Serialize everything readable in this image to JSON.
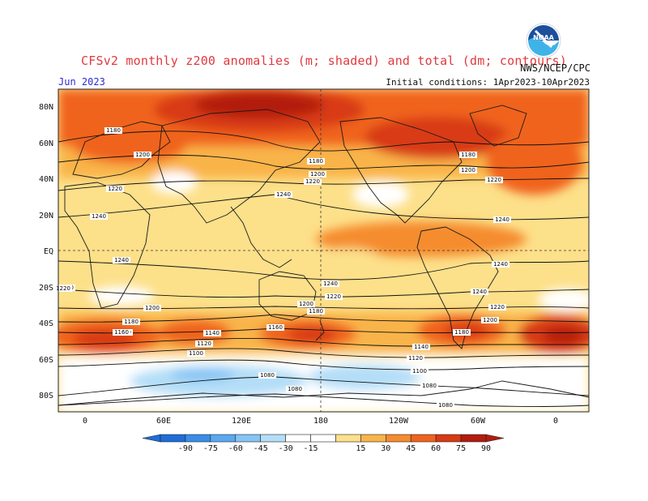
{
  "title": "CFSv2 monthly z200 anomalies (m; shaded) and total (dm; contours)",
  "agency": "NWS/NCEP/CPC",
  "month": "Jun 2023",
  "init": "Initial conditions: 1Apr2023-10Apr2023",
  "logo_text": "NOAA",
  "map": {
    "lat_labels": [
      "80N",
      "60N",
      "40N",
      "20N",
      "EQ",
      "20S",
      "40S",
      "60S",
      "80S"
    ],
    "lon_labels": [
      "0",
      "60E",
      "120E",
      "180",
      "120W",
      "60W",
      "0"
    ]
  },
  "colorbar": {
    "ticks": [
      "-90",
      "-75",
      "-60",
      "-45",
      "-30",
      "-15",
      "15",
      "30",
      "45",
      "60",
      "75",
      "90"
    ],
    "colors": [
      "#1e6ed8",
      "#3a8ee8",
      "#5aa8f0",
      "#86c4f4",
      "#b4def8",
      "#ffffff",
      "#fde08a",
      "#f9b44a",
      "#f58c2e",
      "#f0631e",
      "#d83a14",
      "#b21c0e"
    ]
  },
  "contour_labels": [
    {
      "text": "1180"
    },
    {
      "text": "1200"
    },
    {
      "text": "1220"
    },
    {
      "text": "1240"
    },
    {
      "text": "1240"
    },
    {
      "text": "1220"
    },
    {
      "text": "1200"
    },
    {
      "text": "1180"
    },
    {
      "text": "1160"
    },
    {
      "text": "1140"
    },
    {
      "text": "1120"
    },
    {
      "text": "1100"
    },
    {
      "text": "1080"
    },
    {
      "text": "1080"
    },
    {
      "text": "1180"
    },
    {
      "text": "1200"
    },
    {
      "text": "1220"
    },
    {
      "text": "1240"
    },
    {
      "text": "1240"
    },
    {
      "text": "1240"
    },
    {
      "text": "1220"
    },
    {
      "text": "1200"
    },
    {
      "text": "1180"
    },
    {
      "text": "1160"
    },
    {
      "text": "1140"
    },
    {
      "text": "1120"
    },
    {
      "text": "1100"
    },
    {
      "text": "1080"
    },
    {
      "text": "1080"
    },
    {
      "text": "1180"
    },
    {
      "text": "1200"
    },
    {
      "text": "1220"
    },
    {
      "text": "1240"
    },
    {
      "text": "1240"
    },
    {
      "text": "1220"
    },
    {
      "text": "1200"
    },
    {
      "text": "1180"
    },
    {
      "text": "1160"
    },
    {
      "text": "1220"
    }
  ]
}
